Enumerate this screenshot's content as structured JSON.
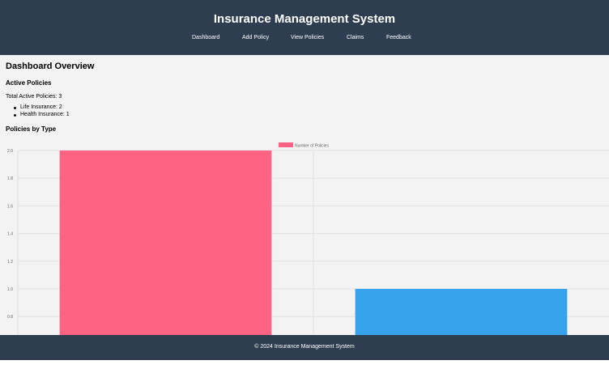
{
  "header": {
    "title": "Insurance Management System",
    "nav": [
      "Dashboard",
      "Add Policy",
      "View Policies",
      "Claims",
      "Feedback"
    ]
  },
  "main": {
    "title": "Dashboard Overview",
    "active_heading": "Active Policies",
    "total_text": "Total Active Policies: 3",
    "items": [
      "Life Insurance: 2",
      "Health Insurance: 1"
    ],
    "chart_heading": "Policies by Type"
  },
  "chart_data": {
    "type": "bar",
    "categories": [
      "Life Insurance",
      "Health Insurance"
    ],
    "series": [
      {
        "name": "Number of Policies",
        "values": [
          2,
          1
        ]
      }
    ],
    "colors": [
      "#ff6384",
      "#36a2eb"
    ],
    "yticks": [
      "2.0",
      "1.8",
      "1.6",
      "1.4",
      "1.2",
      "1.0",
      "0.8"
    ],
    "ylim": [
      0.8,
      2.0
    ],
    "grid": true,
    "legend_position": "top"
  },
  "footer": {
    "text": "© 2024 Insurance Management System"
  }
}
